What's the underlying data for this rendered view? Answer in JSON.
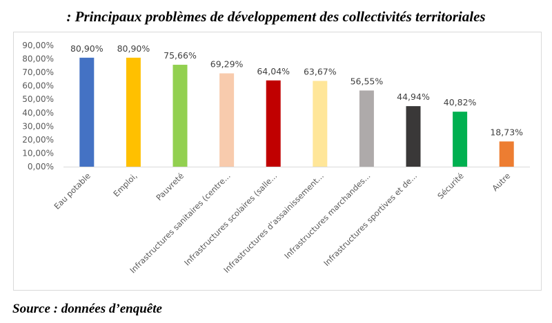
{
  "title": ": Principaux problèmes de développement des collectivités territoriales",
  "source": "Source : données d’enquête",
  "chart_data": {
    "type": "bar",
    "title": ": Principaux problèmes de développement des collectivités territoriales",
    "xlabel": "",
    "ylabel": "",
    "ylim": [
      0,
      90
    ],
    "yticks": [
      0,
      10,
      20,
      30,
      40,
      50,
      60,
      70,
      80,
      90
    ],
    "ytick_labels": [
      "0,00%",
      "10,00%",
      "20,00%",
      "30,00%",
      "40,00%",
      "50,00%",
      "60,00%",
      "70,00%",
      "80,00%",
      "90,00%"
    ],
    "grid": false,
    "legend": "none",
    "categories": [
      "Eau potable",
      "Emploi,",
      "Pauvreté",
      "Infrastructures sanitaires (centre...",
      "Infrastructures scolaires (salle...",
      "Infrastructures d’assainissement...",
      "Infrastructures marchandes...",
      "Infrastructures sportives et de...",
      "Sécurité",
      "Autre"
    ],
    "values": [
      80.9,
      80.9,
      75.66,
      69.29,
      64.04,
      63.67,
      56.55,
      44.94,
      40.82,
      18.73
    ],
    "data_labels": [
      "80,90%",
      "80,90%",
      "75,66%",
      "69,29%",
      "64,04%",
      "63,67%",
      "56,55%",
      "44,94%",
      "40,82%",
      "18,73%"
    ],
    "colors": [
      "#4472C4",
      "#FFC000",
      "#92D050",
      "#F8CBAD",
      "#C00000",
      "#FFE699",
      "#AEAAAA",
      "#3A3838",
      "#00B050",
      "#ED7D31"
    ]
  }
}
